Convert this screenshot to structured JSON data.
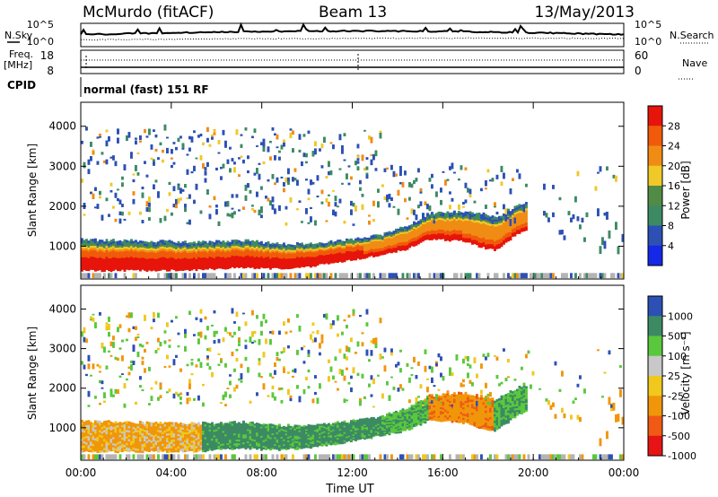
{
  "header": {
    "station": "McMurdo (fitACF)",
    "beam": "Beam 13",
    "date": "13/May/2013"
  },
  "left_labels": {
    "nsky": "N.Sky",
    "freq_line1": "Freq.",
    "freq_line2": "[MHz]",
    "cpid": "CPID"
  },
  "right_labels": {
    "nsearch": "N.Search",
    "nave": "Nave"
  },
  "strip_ticks": {
    "noise_top_left": "10^5",
    "noise_bottom_left": "10^0",
    "noise_top_right": "10^5",
    "noise_bottom_right": "10^0",
    "freq_top": "18",
    "freq_bottom": "8",
    "nave_top": "60",
    "nave_bottom": "0"
  },
  "cpid_text": "normal (fast) 151 RF",
  "colors": {
    "power_scale": [
      "#1428e6",
      "#2c50b4",
      "#3c8a64",
      "#508c46",
      "#f0c828",
      "#f08c14",
      "#f05a0a",
      "#e6140a"
    ],
    "velocity_scale": [
      "#e61414",
      "#f05a14",
      "#f0960a",
      "#f0c81e",
      "#c8c8c8",
      "#5ac83c",
      "#3c8a64",
      "#2c50b4"
    ],
    "ground_scatter": "#b4b4b4"
  },
  "chart_data": [
    {
      "type": "heatmap",
      "title": "Power",
      "xlabel": "",
      "ylabel": "Slant Range [km]",
      "xlim": [
        "00:00",
        "24:00"
      ],
      "ylim": [
        180,
        4600
      ],
      "x_ticks": [
        "00:00",
        "04:00",
        "08:00",
        "12:00",
        "16:00",
        "20:00",
        "00:00"
      ],
      "y_ticks": [
        1000,
        2000,
        3000,
        4000
      ],
      "colorbar": {
        "label": "Power [dB]",
        "ticks": [
          "4",
          "8",
          "12",
          "16",
          "20",
          "24",
          "28"
        ],
        "bins": 8,
        "range": [
          0,
          32
        ]
      }
    },
    {
      "type": "heatmap",
      "title": "Velocity",
      "xlabel": "Time UT",
      "ylabel": "Slant Range [km]",
      "xlim": [
        "00:00",
        "24:00"
      ],
      "ylim": [
        180,
        4600
      ],
      "x_ticks": [
        "00:00",
        "04:00",
        "08:00",
        "12:00",
        "16:00",
        "20:00",
        "00:00"
      ],
      "y_ticks": [
        1000,
        2000,
        3000,
        4000
      ],
      "colorbar": {
        "label": "Velocity [m s⁻¹]",
        "ticks": [
          "1000",
          "500",
          "100",
          "25",
          "-25",
          "-100",
          "-500",
          "-1000"
        ],
        "bins": 8
      }
    }
  ]
}
